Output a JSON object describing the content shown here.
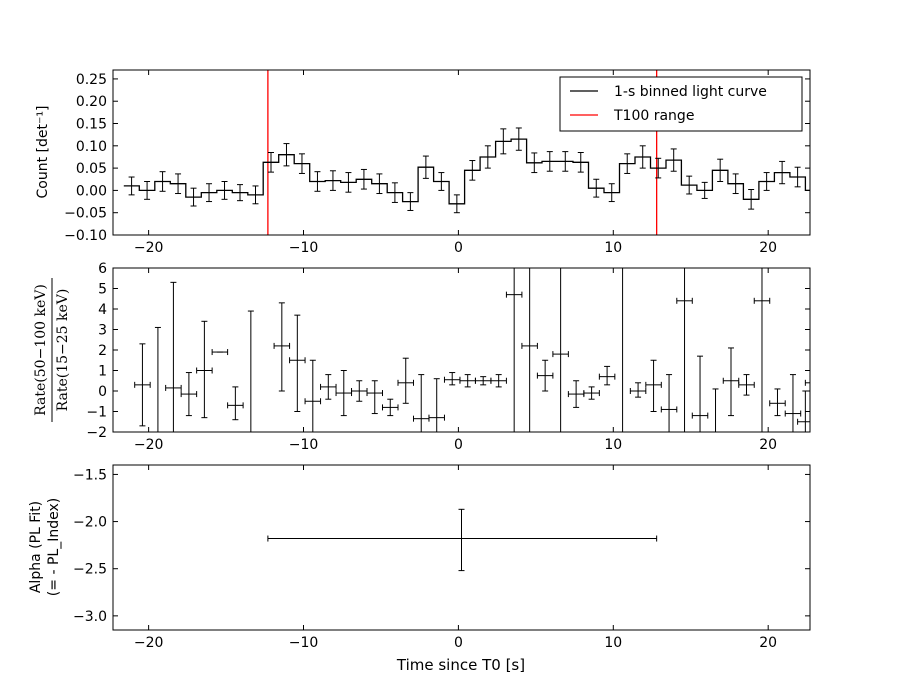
{
  "chart_data": [
    {
      "type": "line",
      "step": true,
      "xlim": [
        -22.3,
        22.7
      ],
      "ylim": [
        -0.1,
        0.27
      ],
      "ylabel": "Count [det⁻¹]",
      "xticks": [
        "−20",
        "−10",
        "0",
        "10",
        "20"
      ],
      "xtick_values": [
        -20,
        -10,
        0,
        10,
        20
      ],
      "yticks": [
        "−0.10",
        "−0.05",
        "0.00",
        "0.05",
        "0.10",
        "0.15",
        "0.20",
        "0.25"
      ],
      "ytick_values": [
        -0.1,
        -0.05,
        0.0,
        0.05,
        0.1,
        0.15,
        0.2,
        0.25
      ],
      "legend_position": "top-right",
      "series": [
        {
          "name": "1-s binned light curve",
          "color": "#000000",
          "bin_start": -21.6,
          "bin_width": 1.0,
          "y": [
            0.01,
            0.0,
            0.02,
            0.015,
            -0.015,
            -0.005,
            0.0,
            -0.005,
            -0.01,
            0.063,
            0.08,
            0.06,
            0.02,
            0.022,
            0.018,
            0.025,
            0.015,
            -0.005,
            -0.025,
            0.052,
            0.02,
            -0.03,
            0.045,
            0.075,
            0.11,
            0.115,
            0.062,
            0.065,
            0.065,
            0.063,
            0.005,
            -0.005,
            0.06,
            0.075,
            0.05,
            0.068,
            0.012,
            0.0,
            0.045,
            0.015,
            -0.02,
            0.02,
            0.04,
            0.03,
            0.0,
            0.005,
            -0.025,
            0.01
          ],
          "err": [
            0.02,
            0.02,
            0.022,
            0.022,
            0.02,
            0.02,
            0.02,
            0.018,
            0.02,
            0.022,
            0.025,
            0.022,
            0.022,
            0.022,
            0.022,
            0.022,
            0.022,
            0.022,
            0.02,
            0.025,
            0.02,
            0.02,
            0.022,
            0.025,
            0.028,
            0.025,
            0.022,
            0.022,
            0.022,
            0.022,
            0.02,
            0.02,
            0.022,
            0.025,
            0.022,
            0.025,
            0.02,
            0.018,
            0.025,
            0.022,
            0.022,
            0.02,
            0.025,
            0.022,
            0.02,
            0.02,
            0.022,
            0.022
          ]
        },
        {
          "name": "T100 range",
          "color": "#ff0000",
          "vlines": [
            -12.3,
            12.8
          ]
        }
      ]
    },
    {
      "type": "scatter",
      "xlim": [
        -22.3,
        22.7
      ],
      "ylim": [
        -2,
        6
      ],
      "ylabel_numerator": "Rate(50−100 keV)",
      "ylabel_denominator": "Rate(15−25 keV)",
      "xticks": [
        "−20",
        "−10",
        "0",
        "10",
        "20"
      ],
      "xtick_values": [
        -20,
        -10,
        0,
        10,
        20
      ],
      "yticks": [
        "−2",
        "−1",
        "0",
        "1",
        "2",
        "3",
        "4",
        "5",
        "6"
      ],
      "ytick_values": [
        -2,
        -1,
        0,
        1,
        2,
        3,
        4,
        5,
        6
      ],
      "points": [
        {
          "x": -20.4,
          "y": 0.3,
          "xerr": 0.5,
          "ylo": -1.7,
          "yhi": 2.3
        },
        {
          "x": -19.4,
          "y": -2.5,
          "xerr": 0.5,
          "ylo": -6.0,
          "yhi": 3.1
        },
        {
          "x": -18.4,
          "y": 0.15,
          "xerr": 0.5,
          "ylo": -4.0,
          "yhi": 5.3
        },
        {
          "x": -17.4,
          "y": -0.15,
          "xerr": 0.5,
          "ylo": -1.2,
          "yhi": 0.9
        },
        {
          "x": -16.4,
          "y": 1.0,
          "xerr": 0.5,
          "ylo": -1.3,
          "yhi": 3.4
        },
        {
          "x": -15.4,
          "y": 1.9,
          "xerr": 0.5,
          "ylo": 1.9,
          "yhi": 1.9
        },
        {
          "x": -14.4,
          "y": -0.7,
          "xerr": 0.5,
          "ylo": -1.4,
          "yhi": 0.2
        },
        {
          "x": -13.4,
          "y": -2.2,
          "xerr": 0.5,
          "ylo": -6.0,
          "yhi": 3.9
        },
        {
          "x": -11.4,
          "y": 2.2,
          "xerr": 0.5,
          "ylo": 0.0,
          "yhi": 4.3
        },
        {
          "x": -10.4,
          "y": 1.5,
          "xerr": 0.5,
          "ylo": -1.0,
          "yhi": 3.7
        },
        {
          "x": -9.4,
          "y": -0.5,
          "xerr": 0.5,
          "ylo": -2.5,
          "yhi": 1.5
        },
        {
          "x": -8.4,
          "y": 0.2,
          "xerr": 0.5,
          "ylo": -0.4,
          "yhi": 0.8
        },
        {
          "x": -7.4,
          "y": -0.1,
          "xerr": 0.5,
          "ylo": -1.2,
          "yhi": 1.0
        },
        {
          "x": -6.4,
          "y": 0.0,
          "xerr": 0.5,
          "ylo": -0.5,
          "yhi": 0.5
        },
        {
          "x": -5.4,
          "y": -0.1,
          "xerr": 0.5,
          "ylo": -1.1,
          "yhi": 0.5
        },
        {
          "x": -4.4,
          "y": -0.8,
          "xerr": 0.5,
          "ylo": -1.2,
          "yhi": -0.4
        },
        {
          "x": -3.4,
          "y": 0.4,
          "xerr": 0.5,
          "ylo": -0.6,
          "yhi": 1.6
        },
        {
          "x": -2.4,
          "y": -1.35,
          "xerr": 0.5,
          "ylo": -2.5,
          "yhi": 0.8
        },
        {
          "x": -1.4,
          "y": -1.3,
          "xerr": 0.5,
          "ylo": -2.0,
          "yhi": 0.6
        },
        {
          "x": -0.4,
          "y": 0.55,
          "xerr": 0.5,
          "ylo": 0.3,
          "yhi": 0.9
        },
        {
          "x": 0.6,
          "y": 0.5,
          "xerr": 0.5,
          "ylo": 0.2,
          "yhi": 0.8
        },
        {
          "x": 1.6,
          "y": 0.5,
          "xerr": 0.5,
          "ylo": 0.3,
          "yhi": 0.7
        },
        {
          "x": 2.6,
          "y": 0.5,
          "xerr": 0.5,
          "ylo": 0.2,
          "yhi": 0.8
        },
        {
          "x": 3.6,
          "y": 4.7,
          "xerr": 0.5,
          "ylo": -6.0,
          "yhi": 6.5
        },
        {
          "x": 4.6,
          "y": 2.2,
          "xerr": 0.5,
          "ylo": -6.0,
          "yhi": 6.5
        },
        {
          "x": 5.6,
          "y": 0.75,
          "xerr": 0.5,
          "ylo": 0.0,
          "yhi": 1.5
        },
        {
          "x": 6.6,
          "y": 1.8,
          "xerr": 0.5,
          "ylo": -6.0,
          "yhi": 6.5
        },
        {
          "x": 7.6,
          "y": -0.15,
          "xerr": 0.5,
          "ylo": -0.8,
          "yhi": 0.5
        },
        {
          "x": 8.6,
          "y": -0.1,
          "xerr": 0.5,
          "ylo": -0.4,
          "yhi": 0.2
        },
        {
          "x": 9.6,
          "y": 0.7,
          "xerr": 0.5,
          "ylo": 0.3,
          "yhi": 1.2
        },
        {
          "x": 10.6,
          "y": -2.5,
          "xerr": 0.5,
          "ylo": -6.0,
          "yhi": 6.5
        },
        {
          "x": 11.6,
          "y": 0.0,
          "xerr": 0.5,
          "ylo": -0.3,
          "yhi": 0.4
        },
        {
          "x": 12.6,
          "y": 0.3,
          "xerr": 0.5,
          "ylo": -1.0,
          "yhi": 1.5
        },
        {
          "x": 13.6,
          "y": -0.9,
          "xerr": 0.5,
          "ylo": -2.5,
          "yhi": 0.8
        },
        {
          "x": 14.6,
          "y": 4.4,
          "xerr": 0.5,
          "ylo": -6.0,
          "yhi": 6.5
        },
        {
          "x": 15.6,
          "y": -1.2,
          "xerr": 0.5,
          "ylo": -4.0,
          "yhi": 1.7
        },
        {
          "x": 16.6,
          "y": -2.5,
          "xerr": 0.5,
          "ylo": -5.0,
          "yhi": 0.1
        },
        {
          "x": 17.6,
          "y": 0.5,
          "xerr": 0.5,
          "ylo": -1.2,
          "yhi": 2.1
        },
        {
          "x": 18.6,
          "y": 0.3,
          "xerr": 0.5,
          "ylo": -0.2,
          "yhi": 0.8
        },
        {
          "x": 19.6,
          "y": 4.4,
          "xerr": 0.5,
          "ylo": -6.0,
          "yhi": 6.5
        },
        {
          "x": 20.6,
          "y": -0.6,
          "xerr": 0.5,
          "ylo": -1.2,
          "yhi": 0.1
        },
        {
          "x": 21.6,
          "y": -1.1,
          "xerr": 0.5,
          "ylo": -3.0,
          "yhi": 0.8
        },
        {
          "x": 22.4,
          "y": -1.5,
          "xerr": 0.5,
          "ylo": -3.0,
          "yhi": 0.0
        },
        {
          "x": 22.9,
          "y": 0.4,
          "xerr": 0.5,
          "ylo": 0.2,
          "yhi": 0.6
        }
      ]
    },
    {
      "type": "scatter",
      "xlim": [
        -22.3,
        22.7
      ],
      "ylim": [
        -3.15,
        -1.4
      ],
      "xlabel": "Time since T0 [s]",
      "ylabel_lines": [
        "Alpha (PL Fit)",
        "(= - PL_Index)"
      ],
      "xticks": [
        "−20",
        "−10",
        "0",
        "10",
        "20"
      ],
      "xtick_values": [
        -20,
        -10,
        0,
        10,
        20
      ],
      "yticks": [
        "−3.0",
        "−2.5",
        "−2.0",
        "−1.5"
      ],
      "ytick_values": [
        -3.0,
        -2.5,
        -2.0,
        -1.5
      ],
      "points": [
        {
          "x": 0.2,
          "y": -2.18,
          "xlo": -12.3,
          "xhi": 12.8,
          "ylo": -2.52,
          "yhi": -1.87
        }
      ]
    }
  ]
}
